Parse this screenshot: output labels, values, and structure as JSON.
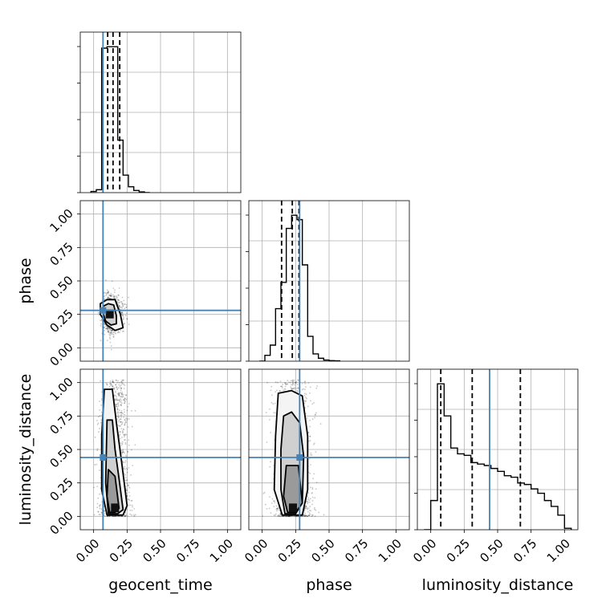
{
  "chart_data": {
    "type": "corner",
    "parameters": [
      "geocent_time",
      "phase",
      "luminosity_distance"
    ],
    "axis_range": [
      -0.1,
      1.1
    ],
    "ticks": [
      0.0,
      0.25,
      0.5,
      0.75,
      1.0
    ],
    "tick_labels": [
      "0.00",
      "0.25",
      "0.50",
      "0.75",
      "1.00"
    ],
    "grid": true,
    "truths": {
      "geocent_time": 0.07,
      "phase": 0.28,
      "luminosity_distance": 0.44
    },
    "truth_color": "#4682b4",
    "histogram_color": "#000000",
    "marginals": [
      {
        "parameter": "geocent_time",
        "bin_edges": [
          -0.02,
          0.02,
          0.06,
          0.1,
          0.14,
          0.18,
          0.22,
          0.26,
          0.3,
          0.34,
          0.38,
          0.42
        ],
        "counts": [
          0.008,
          0.02,
          0.99,
          1.0,
          1.0,
          0.36,
          0.12,
          0.04,
          0.015,
          0.005,
          0.0
        ],
        "quantiles": [
          0.105,
          0.145,
          0.195
        ]
      },
      {
        "parameter": "phase",
        "bin_edges": [
          -0.02,
          0.02,
          0.06,
          0.1,
          0.14,
          0.18,
          0.22,
          0.26,
          0.3,
          0.34,
          0.38,
          0.42,
          0.46,
          0.5,
          0.54,
          0.58
        ],
        "counts": [
          0.0,
          0.04,
          0.11,
          0.36,
          0.54,
          0.91,
          1.0,
          0.97,
          0.66,
          0.17,
          0.05,
          0.02,
          0.008,
          0.004,
          0.002
        ],
        "quantiles": [
          0.145,
          0.225,
          0.275
        ]
      },
      {
        "parameter": "luminosity_distance",
        "bin_edges": [
          -0.05,
          0.0,
          0.05,
          0.1,
          0.15,
          0.2,
          0.25,
          0.3,
          0.35,
          0.4,
          0.45,
          0.5,
          0.55,
          0.6,
          0.65,
          0.7,
          0.75,
          0.8,
          0.85,
          0.9,
          0.95,
          1.0,
          1.05
        ],
        "counts": [
          0.0,
          0.2,
          1.0,
          0.78,
          0.56,
          0.52,
          0.51,
          0.46,
          0.45,
          0.44,
          0.42,
          0.4,
          0.37,
          0.36,
          0.32,
          0.31,
          0.28,
          0.25,
          0.2,
          0.16,
          0.1,
          0.01
        ],
        "quantiles": [
          0.075,
          0.31,
          0.67
        ]
      }
    ],
    "joint_distributions": [
      {
        "x": "geocent_time",
        "y": "phase",
        "peak": [
          0.12,
          0.25
        ],
        "sample_spread": [
          0.045,
          0.065
        ],
        "contours": [
          [
            [
              0.05,
              0.33
            ],
            [
              0.1,
              0.36
            ],
            [
              0.16,
              0.36
            ],
            [
              0.2,
              0.25
            ],
            [
              0.22,
              0.15
            ],
            [
              0.16,
              0.13
            ],
            [
              0.1,
              0.17
            ],
            [
              0.05,
              0.25
            ]
          ],
          [
            [
              0.07,
              0.31
            ],
            [
              0.11,
              0.33
            ],
            [
              0.15,
              0.32
            ],
            [
              0.17,
              0.24
            ],
            [
              0.17,
              0.18
            ],
            [
              0.13,
              0.17
            ],
            [
              0.09,
              0.2
            ],
            [
              0.07,
              0.26
            ]
          ]
        ]
      },
      {
        "x": "geocent_time",
        "y": "luminosity_distance",
        "peak": [
          0.16,
          0.06
        ],
        "sample_spread": [
          0.05,
          0.3
        ],
        "contours": [
          [
            [
              0.08,
              0.95
            ],
            [
              0.14,
              0.95
            ],
            [
              0.17,
              0.7
            ],
            [
              0.21,
              0.4
            ],
            [
              0.25,
              0.08
            ],
            [
              0.22,
              0.01
            ],
            [
              0.1,
              0.01
            ],
            [
              0.06,
              0.2
            ],
            [
              0.06,
              0.6
            ]
          ],
          [
            [
              0.1,
              0.72
            ],
            [
              0.14,
              0.72
            ],
            [
              0.16,
              0.5
            ],
            [
              0.19,
              0.28
            ],
            [
              0.22,
              0.05
            ],
            [
              0.18,
              0.02
            ],
            [
              0.11,
              0.02
            ],
            [
              0.09,
              0.25
            ]
          ],
          [
            [
              0.11,
              0.35
            ],
            [
              0.16,
              0.3
            ],
            [
              0.19,
              0.06
            ],
            [
              0.16,
              0.03
            ],
            [
              0.12,
              0.03
            ],
            [
              0.1,
              0.15
            ]
          ]
        ]
      },
      {
        "x": "phase",
        "y": "luminosity_distance",
        "peak": [
          0.23,
          0.06
        ],
        "sample_spread": [
          0.07,
          0.3
        ],
        "contours": [
          [
            [
              0.12,
              0.92
            ],
            [
              0.22,
              0.94
            ],
            [
              0.3,
              0.9
            ],
            [
              0.34,
              0.6
            ],
            [
              0.34,
              0.2
            ],
            [
              0.3,
              0.01
            ],
            [
              0.15,
              0.01
            ],
            [
              0.09,
              0.2
            ],
            [
              0.1,
              0.6
            ]
          ],
          [
            [
              0.16,
              0.75
            ],
            [
              0.22,
              0.78
            ],
            [
              0.28,
              0.7
            ],
            [
              0.31,
              0.45
            ],
            [
              0.3,
              0.1
            ],
            [
              0.25,
              0.02
            ],
            [
              0.17,
              0.02
            ],
            [
              0.14,
              0.2
            ],
            [
              0.14,
              0.5
            ]
          ],
          [
            [
              0.18,
              0.38
            ],
            [
              0.27,
              0.38
            ],
            [
              0.3,
              0.1
            ],
            [
              0.25,
              0.03
            ],
            [
              0.19,
              0.03
            ],
            [
              0.16,
              0.15
            ]
          ]
        ]
      }
    ]
  }
}
